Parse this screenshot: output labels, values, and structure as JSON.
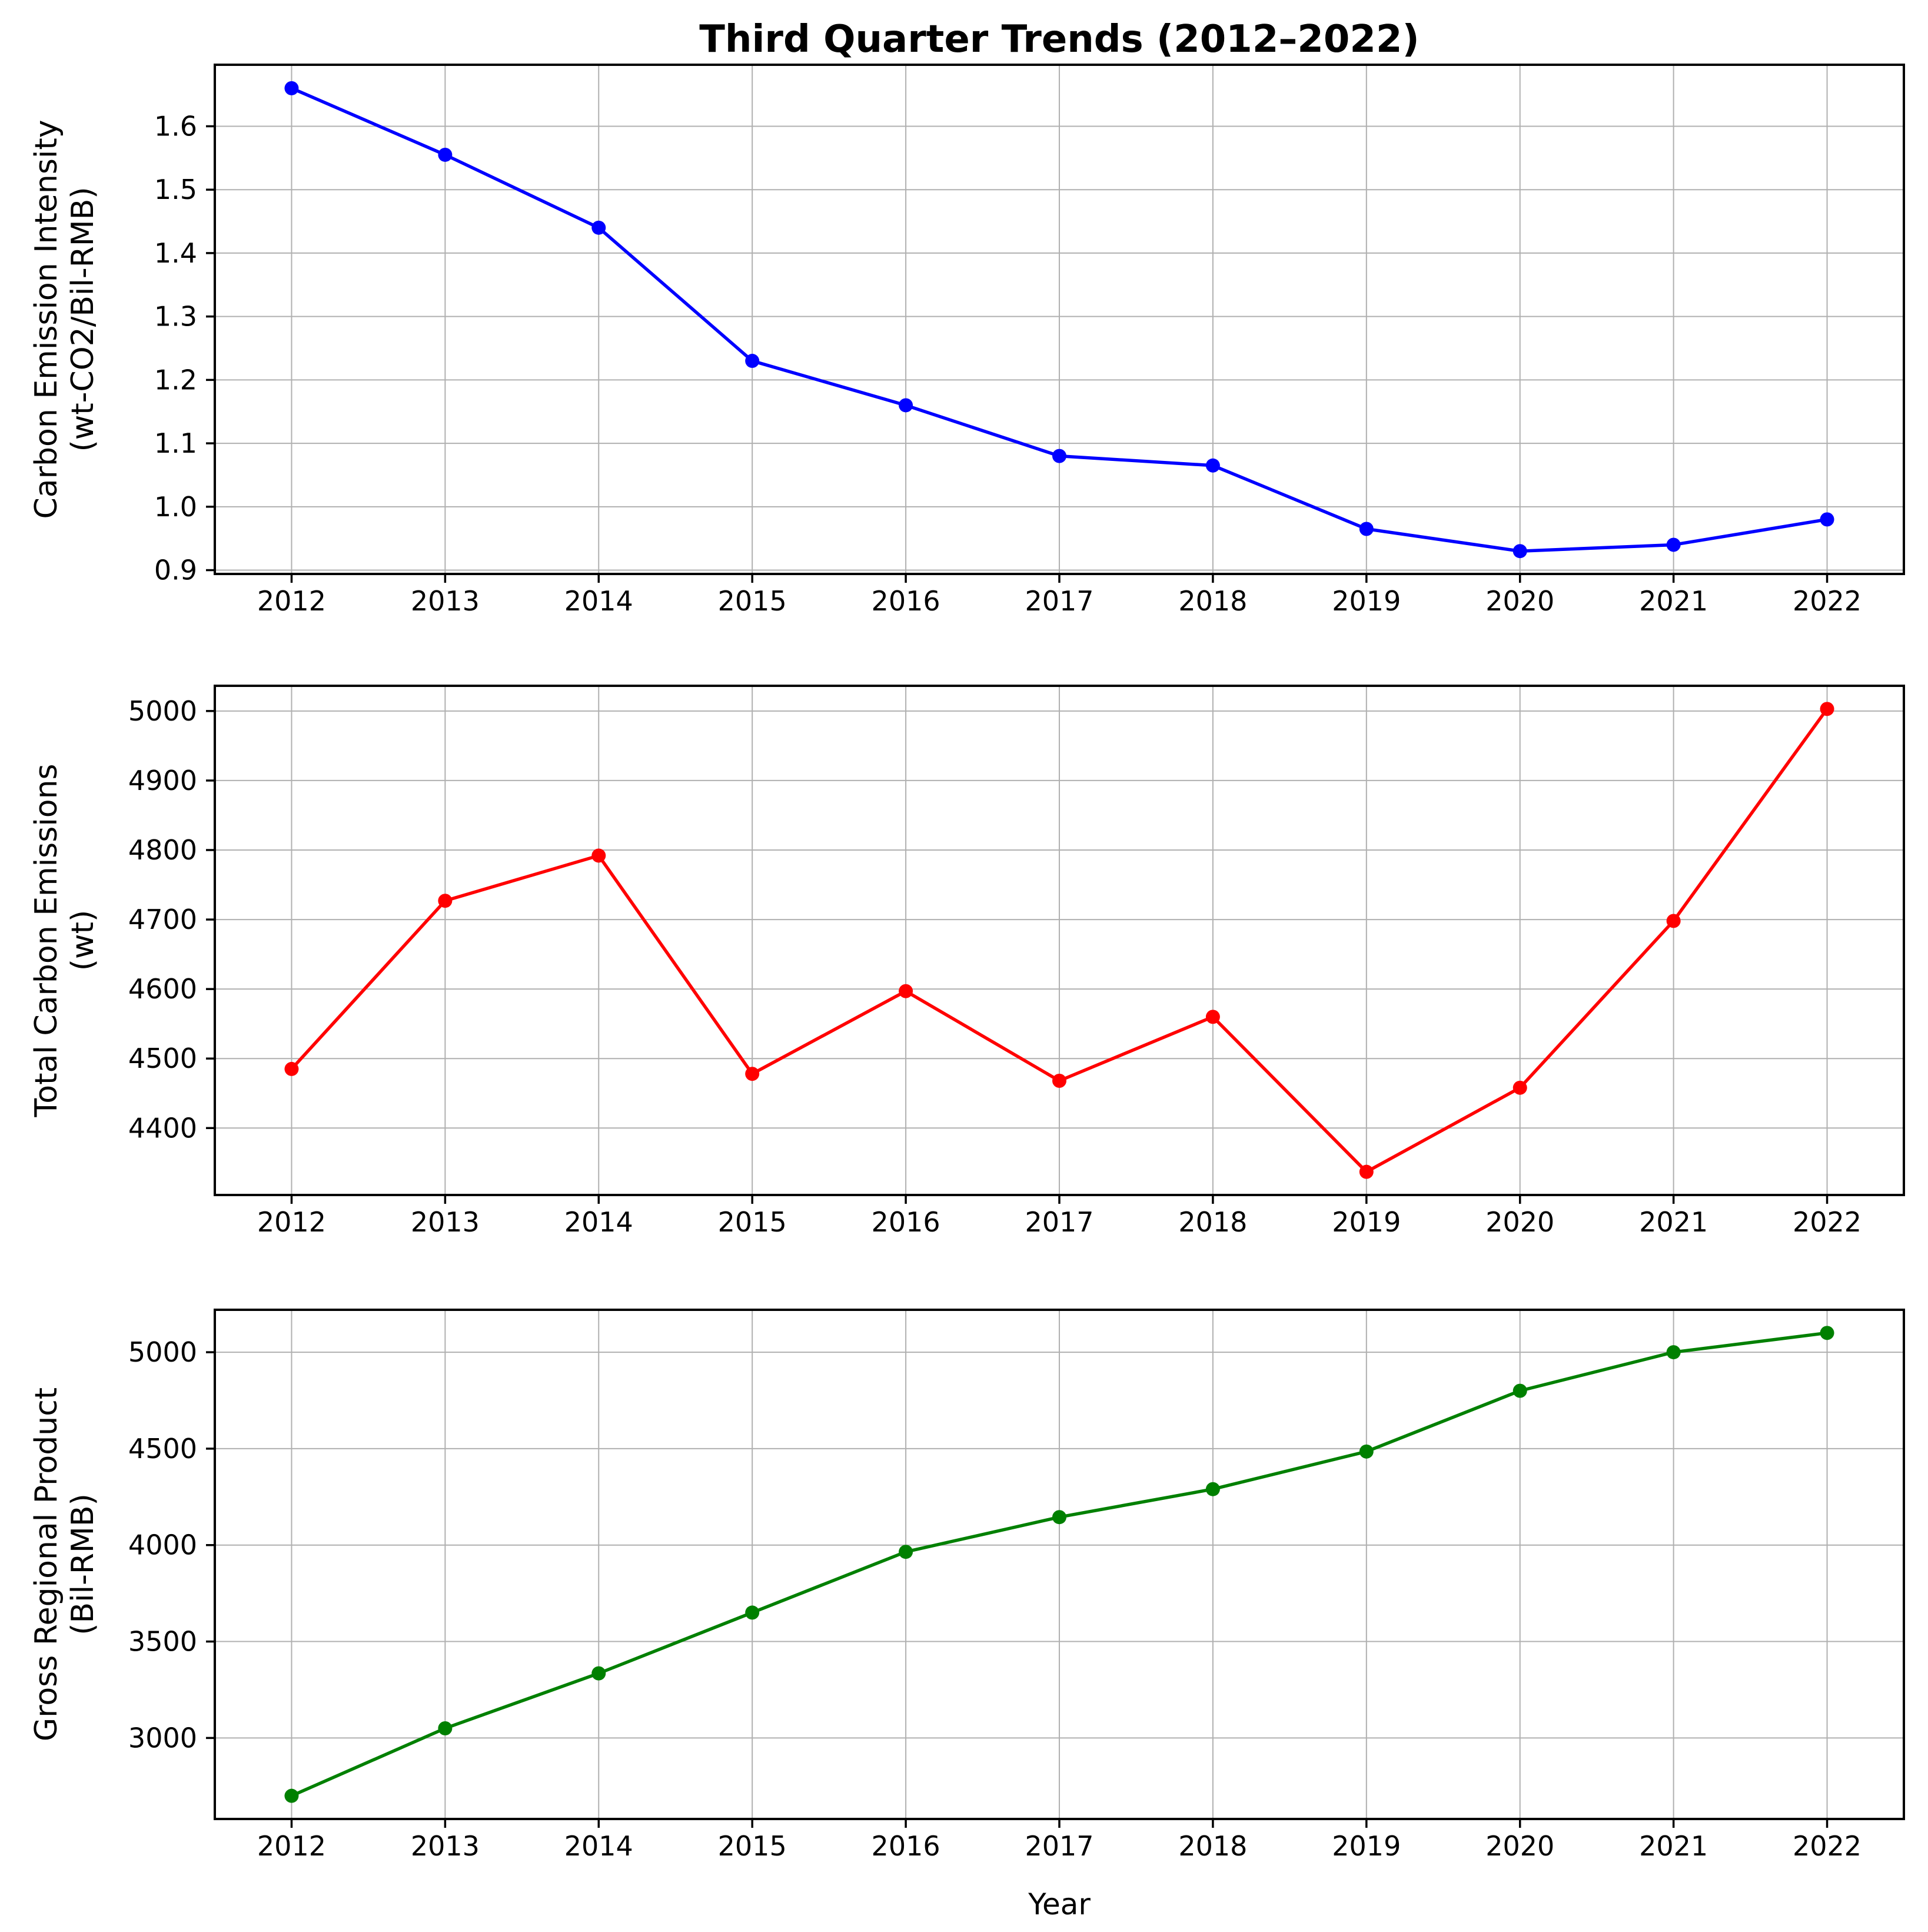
{
  "figure": {
    "title": "Third Quarter Trends (2012–2022)",
    "xlabel": "Year",
    "background_color": "#ffffff"
  },
  "chart_data": [
    {
      "type": "line",
      "series_name": "Carbon Emission Intensity",
      "ylabel": "Carbon Emission Intensity",
      "ylabel_unit": "(wt-CO2/Bil-RMB)",
      "line_color": "#0000ff",
      "marker": "circle",
      "grid": true,
      "legend": false,
      "x": [
        2012,
        2013,
        2014,
        2015,
        2016,
        2017,
        2018,
        2019,
        2020,
        2021,
        2022
      ],
      "values": [
        1.66,
        1.555,
        1.44,
        1.23,
        1.16,
        1.08,
        1.065,
        0.965,
        0.93,
        0.94,
        0.98
      ],
      "yticks": [
        0.9,
        1.0,
        1.1,
        1.2,
        1.3,
        1.4,
        1.5,
        1.6
      ],
      "ytick_labels": [
        "0.9",
        "1.0",
        "1.1",
        "1.2",
        "1.3",
        "1.4",
        "1.5",
        "1.6"
      ],
      "ylim": [
        0.894,
        1.697
      ]
    },
    {
      "type": "line",
      "series_name": "Total Carbon Emissions",
      "ylabel": "Total Carbon Emissions",
      "ylabel_unit": "(wt)",
      "line_color": "#ff0000",
      "marker": "circle",
      "grid": true,
      "legend": false,
      "x": [
        2012,
        2013,
        2014,
        2015,
        2016,
        2017,
        2018,
        2019,
        2020,
        2021,
        2022
      ],
      "values": [
        4485,
        4727,
        4792,
        4478,
        4597,
        4468,
        4560,
        4337,
        4458,
        4698,
        5003
      ],
      "yticks": [
        4400,
        4500,
        4600,
        4700,
        4800,
        4900,
        5000
      ],
      "ytick_labels": [
        "4400",
        "4500",
        "4600",
        "4700",
        "4800",
        "4900",
        "5000"
      ],
      "ylim": [
        4303.7,
        5036.3
      ]
    },
    {
      "type": "line",
      "series_name": "Gross Regional Product",
      "ylabel": "Gross Regional Product",
      "ylabel_unit": "(Bil-RMB)",
      "line_color": "#008000",
      "marker": "circle",
      "grid": true,
      "legend": false,
      "x": [
        2012,
        2013,
        2014,
        2015,
        2016,
        2017,
        2018,
        2019,
        2020,
        2021,
        2022
      ],
      "values": [
        2700,
        3050,
        3335,
        3650,
        3965,
        4145,
        4290,
        4485,
        4800,
        5000,
        5100
      ],
      "yticks": [
        3000,
        3500,
        4000,
        4500,
        5000
      ],
      "ytick_labels": [
        "3000",
        "3500",
        "4000",
        "4500",
        "5000"
      ],
      "ylim": [
        2580,
        5220
      ]
    }
  ]
}
